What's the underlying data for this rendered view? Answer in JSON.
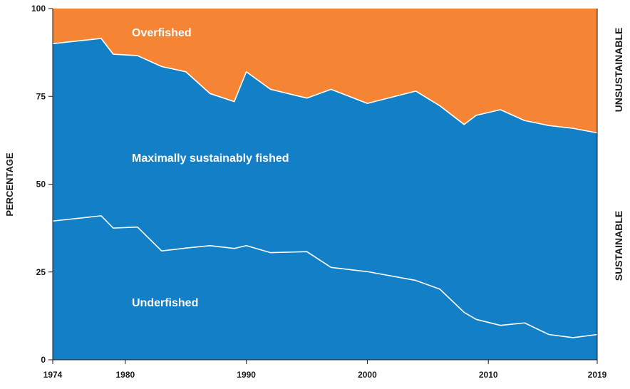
{
  "colors": {
    "overfished": "#F58535",
    "sustainable": "#127FC6",
    "divider": "#ffffff",
    "axis": "#1a1a1a"
  },
  "labels": {
    "y_axis_title": "PERCENTAGE",
    "overfished": "Overfished",
    "maximally": "Maximally sustainably fished",
    "underfished": "Underfished",
    "unsustainable": "UNSUSTAINABLE",
    "sustainable": "SUSTAINABLE"
  },
  "chart_data": {
    "type": "area",
    "stacked": true,
    "xlim": [
      1974,
      2019
    ],
    "ylim": [
      0,
      100
    ],
    "x_ticks": [
      1974,
      1980,
      1990,
      2000,
      2010,
      2019
    ],
    "y_ticks": [
      0,
      25,
      50,
      75,
      100
    ],
    "ylabel": "PERCENTAGE",
    "series": [
      {
        "name": "Underfished",
        "x": [
          1974,
          1978,
          1979,
          1981,
          1983,
          1985,
          1987,
          1989,
          1990,
          1992,
          1995,
          1997,
          2000,
          2004,
          2006,
          2008,
          2009,
          2011,
          2013,
          2015,
          2017,
          2019
        ],
        "upper": [
          39.5,
          41,
          37.5,
          37.8,
          31,
          31.8,
          32.5,
          31.7,
          32.5,
          30.5,
          30.8,
          26.3,
          25.1,
          22.6,
          20.1,
          13.5,
          11.5,
          9.8,
          10.5,
          7.2,
          6.3,
          7.2
        ]
      },
      {
        "name": "Maximally sustainably fished",
        "x": [
          1974,
          1978,
          1979,
          1981,
          1983,
          1985,
          1987,
          1989,
          1990,
          1992,
          1995,
          1997,
          2000,
          2004,
          2006,
          2008,
          2009,
          2011,
          2013,
          2015,
          2017,
          2019
        ],
        "upper": [
          90,
          91.5,
          87,
          86.6,
          83.5,
          82,
          75.8,
          73.5,
          82,
          77,
          74.5,
          77,
          73,
          76.5,
          72.3,
          67,
          69.6,
          71.2,
          68.1,
          66.7,
          65.9,
          64.6
        ]
      },
      {
        "name": "Overfished",
        "x": [
          1974,
          2019
        ],
        "upper": [
          100,
          100
        ]
      }
    ],
    "right_labels": [
      "UNSUSTAINABLE",
      "SUSTAINABLE"
    ]
  }
}
